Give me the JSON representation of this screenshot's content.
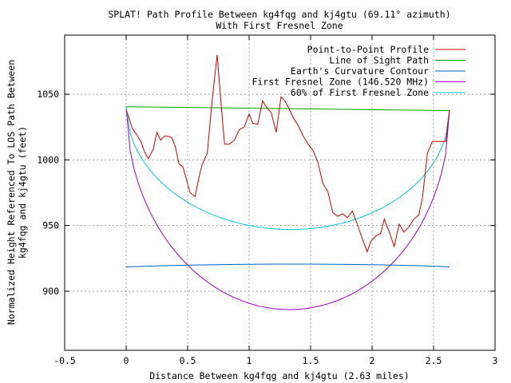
{
  "chart_data": {
    "type": "line",
    "title": "SPLAT! Path Profile Between kg4fqg and kj4gtu (69.11° azimuth)",
    "subtitle": "With First Fresnel Zone",
    "xlabel": "Distance Between kg4fqg and kj4gtu (2.63 miles)",
    "ylabel_lines": [
      "Normalized Height Referenced To LOS Path Between",
      "kg4fqg and kj4gtu (feet)"
    ],
    "xlim": [
      -0.5,
      3
    ],
    "ylim": [
      855,
      1095
    ],
    "x_ticks": [
      -0.5,
      0,
      0.5,
      1,
      1.5,
      2,
      2.5,
      3
    ],
    "x_tick_labels": [
      "-0.5",
      "0",
      "0.5",
      "1",
      "1.5",
      "2",
      "2.5",
      "3"
    ],
    "y_ticks": [
      900,
      950,
      1000,
      1050
    ],
    "y_tick_labels": [
      "900",
      "950",
      "1000",
      "1050"
    ],
    "grid": true,
    "legend_position": "top-right",
    "series": [
      {
        "name": "Point-to-Point Profile",
        "color": "#cc0000",
        "x": [
          0,
          0.02,
          0.05,
          0.08,
          0.12,
          0.15,
          0.18,
          0.22,
          0.25,
          0.28,
          0.31,
          0.34,
          0.37,
          0.4,
          0.43,
          0.46,
          0.49,
          0.52,
          0.56,
          0.6,
          0.62,
          0.66,
          0.7,
          0.74,
          0.77,
          0.8,
          0.84,
          0.88,
          0.92,
          0.96,
          1.0,
          1.03,
          1.07,
          1.11,
          1.14,
          1.18,
          1.22,
          1.26,
          1.29,
          1.32,
          1.36,
          1.4,
          1.44,
          1.48,
          1.52,
          1.56,
          1.6,
          1.64,
          1.68,
          1.72,
          1.76,
          1.8,
          1.84,
          1.88,
          1.92,
          1.96,
          1.99,
          2.03,
          2.07,
          2.1,
          2.14,
          2.18,
          2.22,
          2.26,
          2.3,
          2.34,
          2.38,
          2.41,
          2.45,
          2.49,
          2.53,
          2.57,
          2.6,
          2.63
        ],
        "y": [
          1038,
          1033,
          1024,
          1020,
          1014,
          1006,
          1001,
          1008,
          1021,
          1015,
          1018,
          1018,
          1017,
          1010,
          997,
          995,
          985,
          975,
          972,
          990,
          997,
          1005,
          1046,
          1080,
          1045,
          1012,
          1012,
          1015,
          1023,
          1025,
          1035,
          1028,
          1027,
          1045,
          1040,
          1036,
          1021,
          1048,
          1045,
          1040,
          1032,
          1026,
          1018,
          1012,
          1007,
          998,
          982,
          976,
          960,
          957,
          959,
          956,
          961,
          951,
          940,
          930,
          938,
          942,
          944,
          955,
          945,
          934,
          951,
          945,
          949,
          955,
          958,
          971,
          1005,
          1014,
          1014,
          1014,
          1014,
          1038
        ]
      },
      {
        "name": "Line of Sight Path",
        "color": "#00a000",
        "x": [
          0,
          2.63
        ],
        "y": [
          1040.5,
          1037.5
        ]
      },
      {
        "name": "Earth's Curvature Contour",
        "color": "#0060c0",
        "x": [
          0,
          0.3,
          0.6,
          0.9,
          1.2,
          1.32,
          1.5,
          1.8,
          2.1,
          2.4,
          2.63
        ],
        "y": [
          918.5,
          919.4,
          920.0,
          920.4,
          920.6,
          920.6,
          920.6,
          920.4,
          920.0,
          919.4,
          918.5
        ]
      },
      {
        "name": "First Fresnel Zone (146.520 MHz)",
        "color": "#a000c0",
        "clearance_ft": 153,
        "x": [],
        "y": []
      },
      {
        "name": "60% of First Fresnel Zone",
        "color": "#00c8d0",
        "clearance_ft": 92,
        "x": [],
        "y": []
      }
    ]
  }
}
